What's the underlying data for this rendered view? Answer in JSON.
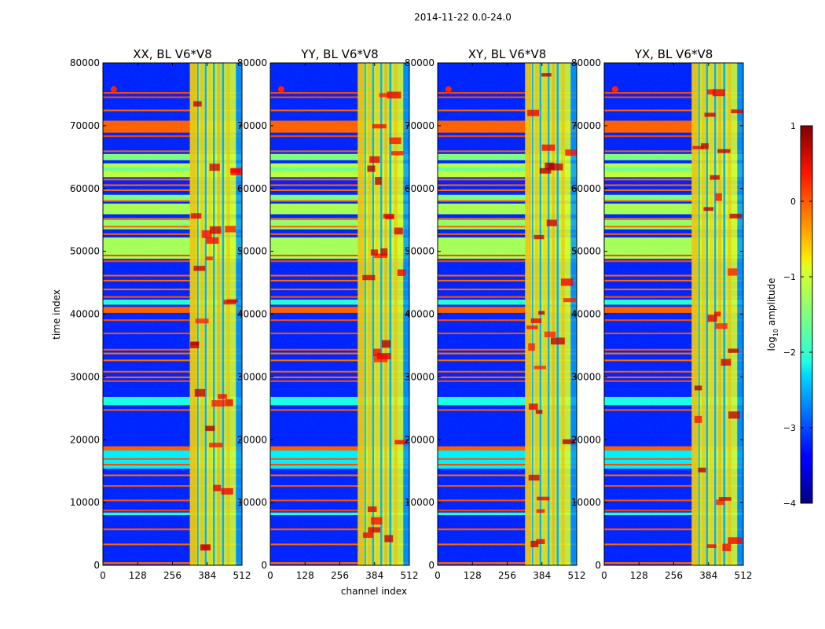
{
  "suptitle": "2014-11-22 0.0-24.0",
  "chart_data": [
    {
      "type": "heatmap",
      "title": "XX, BL V6*V8",
      "xlabel": "channel index",
      "ylabel": "time index",
      "xlim": [
        0,
        512
      ],
      "ylim": [
        0,
        80000
      ],
      "xticks": [
        0,
        128,
        256,
        384,
        512
      ],
      "yticks": [
        0,
        10000,
        20000,
        30000,
        40000,
        50000,
        60000,
        70000,
        80000
      ],
      "value_label": "log10 amplitude",
      "value_range": [
        -4,
        1
      ]
    },
    {
      "type": "heatmap",
      "title": "YY, BL V6*V8",
      "xlabel": "channel index",
      "xlim": [
        0,
        512
      ],
      "ylim": [
        0,
        80000
      ],
      "xticks": [
        0,
        128,
        256,
        384,
        512
      ],
      "yticks": [
        0,
        10000,
        20000,
        30000,
        40000,
        50000,
        60000,
        70000,
        80000
      ],
      "value_label": "log10 amplitude",
      "value_range": [
        -4,
        1
      ]
    },
    {
      "type": "heatmap",
      "title": "XY, BL V6*V8",
      "xlim": [
        0,
        512
      ],
      "ylim": [
        0,
        80000
      ],
      "xticks": [
        0,
        128,
        256,
        384,
        512
      ],
      "yticks": [
        0,
        10000,
        20000,
        30000,
        40000,
        50000,
        60000,
        70000,
        80000
      ],
      "value_label": "log10 amplitude",
      "value_range": [
        -4,
        1
      ]
    },
    {
      "type": "heatmap",
      "title": "YX, BL V6*V8",
      "xlim": [
        0,
        512
      ],
      "ylim": [
        0,
        80000
      ],
      "xticks": [
        0,
        128,
        256,
        384,
        512
      ],
      "yticks": [
        0,
        10000,
        20000,
        30000,
        40000,
        50000,
        60000,
        70000,
        80000
      ],
      "value_label": "log10 amplitude",
      "value_range": [
        -4,
        1
      ]
    }
  ],
  "axis_labels": {
    "x": "channel index",
    "y": "time index"
  },
  "colorbar": {
    "label_main": "log",
    "label_sub": "10",
    "label_rest": " amplitude",
    "ticks": [
      1,
      0,
      -1,
      -2,
      -3,
      -4
    ],
    "tick_labels": [
      "1",
      "0",
      "−1",
      "−2",
      "−3",
      "−4"
    ],
    "range": [
      -4,
      1
    ]
  },
  "colormap": "jet"
}
